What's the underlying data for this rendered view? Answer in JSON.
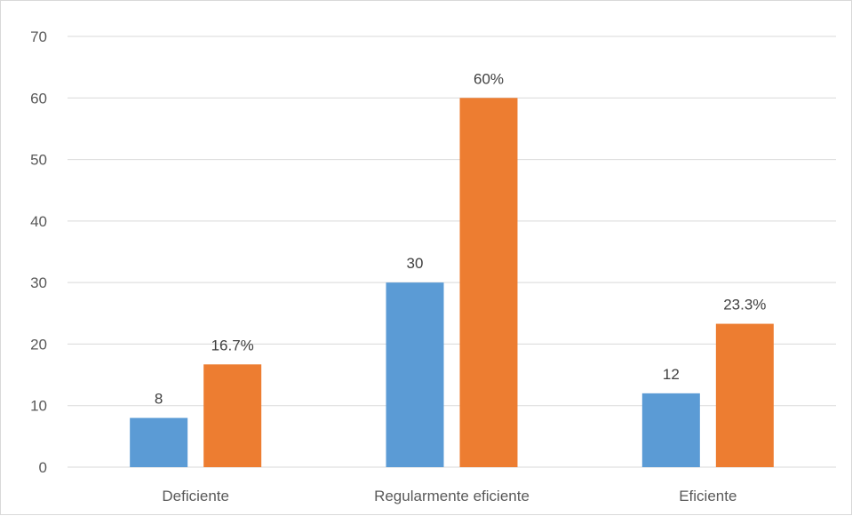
{
  "chart_data": {
    "type": "bar",
    "categories": [
      "Deficiente",
      "Regularmente eficiente",
      "Eficiente"
    ],
    "series": [
      {
        "values": [
          8,
          30,
          12
        ],
        "data_labels": [
          "8",
          "30",
          "12"
        ],
        "color": "#5b9bd5"
      },
      {
        "values": [
          16.7,
          60,
          23.3
        ],
        "data_labels": [
          "16.7%",
          "60%",
          "23.3%"
        ],
        "color": "#ed7d31"
      }
    ],
    "ylim": [
      0,
      70
    ],
    "yticks": [
      0,
      10,
      20,
      30,
      40,
      50,
      60,
      70
    ],
    "ytick_labels": [
      "0",
      "10",
      "20",
      "30",
      "40",
      "50",
      "60",
      "70"
    ],
    "grid": true,
    "gridline_color": "#d9d9d9"
  }
}
